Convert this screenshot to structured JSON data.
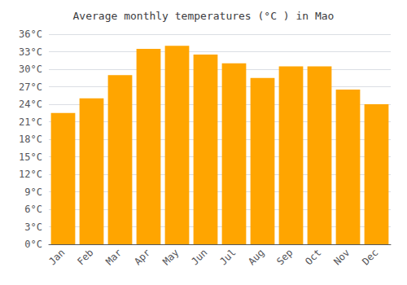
{
  "chart_data": {
    "type": "bar",
    "title": "Average monthly temperatures (°C ) in Mao",
    "categories": [
      "Jan",
      "Feb",
      "Mar",
      "Apr",
      "May",
      "Jun",
      "Jul",
      "Aug",
      "Sep",
      "Oct",
      "Nov",
      "Dec"
    ],
    "values": [
      22.5,
      25.0,
      29.0,
      33.5,
      34.0,
      32.5,
      31.0,
      28.5,
      30.5,
      30.5,
      26.5,
      24.0
    ],
    "color": "#FFA500",
    "ylim": [
      0,
      36
    ],
    "yticks": [
      {
        "value": 0,
        "label": "0°C"
      },
      {
        "value": 3,
        "label": "3°C"
      },
      {
        "value": 6,
        "label": "6°C"
      },
      {
        "value": 9,
        "label": "9°C"
      },
      {
        "value": 12,
        "label": "12°C"
      },
      {
        "value": 15,
        "label": "15°C"
      },
      {
        "value": 18,
        "label": "18°C"
      },
      {
        "value": 21,
        "label": "21°C"
      },
      {
        "value": 24,
        "label": "24°C"
      },
      {
        "value": 27,
        "label": "27°C"
      },
      {
        "value": 30,
        "label": "30°C"
      },
      {
        "value": 33,
        "label": "33°C"
      },
      {
        "value": 36,
        "label": "36°C"
      }
    ],
    "grid": true
  }
}
